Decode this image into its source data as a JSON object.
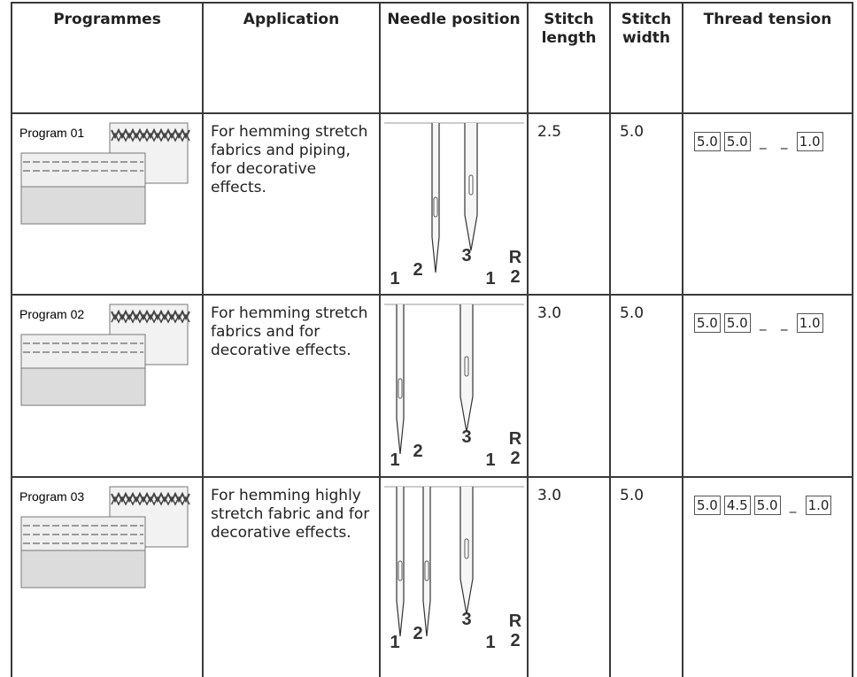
{
  "table": {
    "headers": [
      "Programmes",
      "Application",
      "Needle position",
      "Stitch length",
      "Stitch width",
      "Thread tension"
    ],
    "rows": [
      {
        "program": "Program 01",
        "application": "For hemming stretch fabrics and piping, for decorative effects.",
        "needle_labels": [
          "1",
          "2",
          "3",
          "1",
          "2",
          "R"
        ],
        "stitch_length": "2.5",
        "stitch_width": "5.0",
        "thread_tension": [
          "5.0",
          "5.0",
          "_",
          "_",
          "1.0"
        ]
      },
      {
        "program": "Program 02",
        "application": "For hemming stretch fabrics and for decorative effects.",
        "needle_labels": [
          "1",
          "2",
          "3",
          "1",
          "2",
          "R"
        ],
        "stitch_length": "3.0",
        "stitch_width": "5.0",
        "thread_tension": [
          "5.0",
          "5.0",
          "_",
          "_",
          "1.0"
        ]
      },
      {
        "program": "Program 03",
        "application": "For hemming highly stretch fabric and for decorative effects.",
        "needle_labels": [
          "1",
          "2",
          "3",
          "1",
          "2",
          "R"
        ],
        "stitch_length": "3.0",
        "stitch_width": "5.0",
        "thread_tension": [
          "5.0",
          "4.5",
          "5.0",
          "_",
          "1.0"
        ]
      }
    ]
  }
}
